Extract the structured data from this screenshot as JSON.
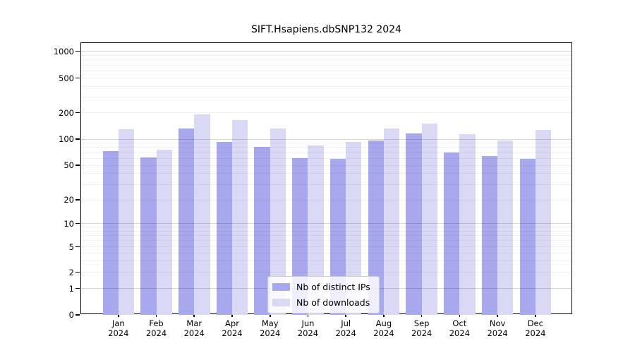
{
  "title": "SIFT.Hsapiens.dbSNP132 2024",
  "chart_data": {
    "type": "bar",
    "title": "SIFT.Hsapiens.dbSNP132 2024",
    "categories": [
      "Jan",
      "Feb",
      "Mar",
      "Apr",
      "May",
      "Jun",
      "Jul",
      "Aug",
      "Sep",
      "Oct",
      "Nov",
      "Dec"
    ],
    "category_year": "2024",
    "series": [
      {
        "name": "Nb of distinct IPs",
        "color": "#a8a8ef",
        "values": [
          73,
          61,
          132,
          92,
          82,
          60,
          59,
          96,
          117,
          70,
          64,
          59
        ]
      },
      {
        "name": "Nb of downloads",
        "color": "#d9d9f6",
        "values": [
          130,
          75,
          190,
          165,
          131,
          84,
          92,
          133,
          151,
          113,
          96,
          127
        ]
      }
    ],
    "yscale": "log-like with 0 baseline",
    "ytick_values": [
      0,
      1,
      2,
      5,
      10,
      20,
      50,
      100,
      200,
      500,
      1000
    ],
    "ytick_labels": [
      "0",
      "1",
      "2",
      "5",
      "10",
      "20",
      "50",
      "100",
      "200",
      "500",
      "1000"
    ],
    "ylim": [
      0,
      1000
    ],
    "grid": "major at powers of ten, faint log minors, drawn over bars",
    "legend_position": "bottom-center inside plot",
    "background": "#ffffff",
    "frame_color": "#000000"
  }
}
